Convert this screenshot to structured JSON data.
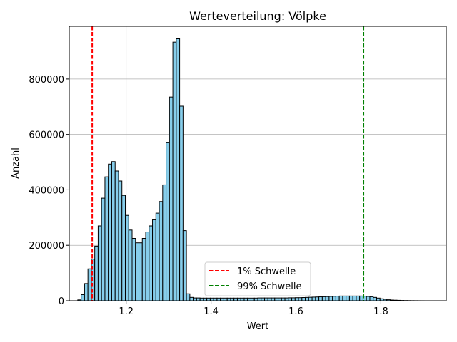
{
  "chart_data": {
    "type": "bar",
    "title": "Werteverteilung: Völpke",
    "xlabel": "Wert",
    "ylabel": "Anzahl",
    "xlim": [
      1.066,
      1.954
    ],
    "ylim": [
      0,
      990000
    ],
    "xticks": [
      1.2,
      1.4,
      1.6,
      1.8
    ],
    "xtick_labels": [
      "1.2",
      "1.4",
      "1.6",
      "1.8"
    ],
    "yticks": [
      0,
      200000,
      400000,
      600000,
      800000
    ],
    "ytick_labels": [
      "0",
      "200000",
      "400000",
      "600000",
      "800000"
    ],
    "grid": true,
    "legend_position": "lower center",
    "bar_color": "#87ceeb",
    "bar_edge_color": "#000000",
    "bin_width": 0.008,
    "x": [
      1.09,
      1.098,
      1.106,
      1.114,
      1.122,
      1.13,
      1.138,
      1.146,
      1.154,
      1.162,
      1.17,
      1.178,
      1.186,
      1.194,
      1.202,
      1.21,
      1.218,
      1.226,
      1.234,
      1.242,
      1.25,
      1.258,
      1.266,
      1.274,
      1.282,
      1.29,
      1.298,
      1.306,
      1.314,
      1.322,
      1.33,
      1.338,
      1.346,
      1.354,
      1.362,
      1.37,
      1.378,
      1.386,
      1.394,
      1.402,
      1.41,
      1.418,
      1.426,
      1.434,
      1.442,
      1.45,
      1.458,
      1.466,
      1.474,
      1.482,
      1.49,
      1.498,
      1.506,
      1.514,
      1.522,
      1.53,
      1.538,
      1.546,
      1.554,
      1.562,
      1.57,
      1.578,
      1.586,
      1.594,
      1.602,
      1.61,
      1.618,
      1.626,
      1.634,
      1.642,
      1.65,
      1.658,
      1.666,
      1.674,
      1.682,
      1.69,
      1.698,
      1.706,
      1.714,
      1.722,
      1.73,
      1.738,
      1.746,
      1.754,
      1.762,
      1.77,
      1.778,
      1.786,
      1.794,
      1.802,
      1.81,
      1.818,
      1.826,
      1.834,
      1.842,
      1.85,
      1.858,
      1.866,
      1.874,
      1.882,
      1.89,
      1.898,
      1.906,
      1.914,
      1.922,
      1.93
    ],
    "values": [
      3000,
      22000,
      62000,
      115000,
      150000,
      197000,
      270000,
      370000,
      447000,
      493000,
      502000,
      468000,
      432000,
      380000,
      308000,
      255000,
      225000,
      209000,
      209000,
      225000,
      248000,
      270000,
      292000,
      316000,
      358000,
      418000,
      570000,
      735000,
      933000,
      945000,
      702000,
      253000,
      25000,
      12000,
      10000,
      10000,
      9500,
      9500,
      9500,
      9500,
      9500,
      9500,
      9500,
      9500,
      9500,
      9500,
      9500,
      9500,
      9500,
      9500,
      9500,
      9500,
      9500,
      10000,
      10000,
      10000,
      10000,
      10000,
      10000,
      10000,
      10000,
      10000,
      10500,
      10500,
      11000,
      11000,
      11500,
      12000,
      12500,
      13000,
      13500,
      14000,
      14500,
      15000,
      15500,
      16000,
      16500,
      17000,
      17000,
      17000,
      17000,
      17000,
      17000,
      17000,
      16500,
      15500,
      14500,
      12000,
      9500,
      7000,
      5000,
      3500,
      2500,
      2000,
      1500,
      1000,
      700,
      500,
      300,
      200,
      100,
      50,
      0,
      0,
      0,
      0
    ],
    "thresholds": [
      {
        "name": "1% Schwelle",
        "x": 1.12,
        "color": "#ff0000"
      },
      {
        "name": "99% Schwelle",
        "x": 1.759,
        "color": "#008000"
      }
    ]
  }
}
